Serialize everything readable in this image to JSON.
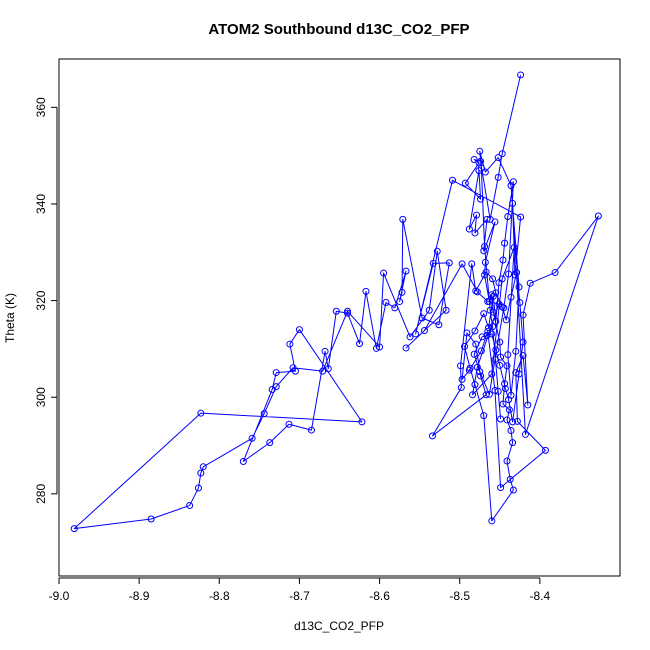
{
  "chart_data": {
    "type": "line",
    "title": "ATOM2 Southbound d13C_CO2_PFP",
    "xlabel": "d13C_CO2_PFP",
    "ylabel": "Theta (K)",
    "xlim": [
      -9.0,
      -8.3
    ],
    "ylim": [
      263,
      370
    ],
    "xticks": [
      -9.0,
      -8.9,
      -8.8,
      -8.7,
      -8.6,
      -8.5,
      -8.4
    ],
    "yticks": [
      280,
      300,
      320,
      340,
      360
    ],
    "xtick_labels": [
      "-9.0",
      "-8.9",
      "-8.8",
      "-8.7",
      "-8.6",
      "-8.5",
      "-8.4"
    ],
    "ytick_labels": [
      "280",
      "300",
      "320",
      "340",
      "360"
    ],
    "grid": false,
    "markers": "open-circle",
    "series": [
      {
        "color": "#0000ff",
        "points": [
          [
            -8.424,
            366.7
          ],
          [
            -8.447,
            350.4
          ],
          [
            -8.452,
            345.5
          ],
          [
            -8.462,
            336.8
          ],
          [
            -8.474,
            348.8
          ],
          [
            -8.482,
            349.2
          ],
          [
            -8.476,
            348.5
          ],
          [
            -8.493,
            344.3
          ],
          [
            -8.474,
            341.0
          ],
          [
            -8.476,
            346.9
          ],
          [
            -8.488,
            334.8
          ],
          [
            -8.479,
            337.7
          ],
          [
            -8.481,
            334.0
          ],
          [
            -8.466,
            336.8
          ],
          [
            -8.47,
            330.3
          ],
          [
            -8.456,
            336.3
          ],
          [
            -8.468,
            327.9
          ],
          [
            -8.469,
            325.3
          ],
          [
            -8.463,
            319.8
          ],
          [
            -8.46,
            321.2
          ],
          [
            -8.458,
            317.6
          ],
          [
            -8.45,
            311.4
          ],
          [
            -8.449,
            308.3
          ],
          [
            -8.441,
            306.5
          ],
          [
            -8.444,
            302.8
          ],
          [
            -8.446,
            298.6
          ],
          [
            -8.438,
            297.4
          ],
          [
            -8.441,
            295.3
          ],
          [
            -8.436,
            293.1
          ],
          [
            -8.434,
            290.6
          ],
          [
            -8.441,
            286.8
          ],
          [
            -8.437,
            283.0
          ],
          [
            -8.433,
            280.8
          ],
          [
            -8.46,
            274.4
          ],
          [
            -8.47,
            296.2
          ],
          [
            -8.481,
            302.6
          ],
          [
            -8.487,
            306.0
          ],
          [
            -8.494,
            310.5
          ],
          [
            -8.481,
            313.7
          ],
          [
            -8.47,
            317.3
          ],
          [
            -8.464,
            314.4
          ],
          [
            -8.458,
            320.9
          ],
          [
            -8.455,
            315.7
          ],
          [
            -8.451,
            323.7
          ],
          [
            -8.446,
            328.4
          ],
          [
            -8.444,
            331.9
          ],
          [
            -8.44,
            337.4
          ],
          [
            -8.433,
            344.6
          ],
          [
            -8.439,
            325.5
          ],
          [
            -8.445,
            318.5
          ],
          [
            -8.456,
            307.8
          ],
          [
            -8.463,
            300.6
          ],
          [
            -8.475,
            305.3
          ],
          [
            -8.482,
            308.9
          ],
          [
            -8.472,
            312.5
          ],
          [
            -8.466,
            312.8
          ],
          [
            -8.46,
            313.1
          ],
          [
            -8.455,
            309.8
          ],
          [
            -8.45,
            306.6
          ],
          [
            -8.443,
            301.8
          ],
          [
            -8.439,
            299.5
          ],
          [
            -8.434,
            294.9
          ],
          [
            -8.426,
            304.8
          ],
          [
            -8.421,
            311.4
          ],
          [
            -8.425,
            319.6
          ],
          [
            -8.429,
            325.8
          ],
          [
            -8.436,
            320.7
          ],
          [
            -8.442,
            316.0
          ],
          [
            -8.447,
            318.7
          ],
          [
            -8.455,
            321.6
          ],
          [
            -8.459,
            324.5
          ],
          [
            -8.467,
            325.9
          ],
          [
            -8.48,
            322.0
          ],
          [
            -8.485,
            327.6
          ],
          [
            -8.499,
            306.5
          ],
          [
            -8.498,
            302.0
          ],
          [
            -8.534,
            292.0
          ],
          [
            -8.467,
            300.5
          ],
          [
            -8.474,
            304.4
          ],
          [
            -8.48,
            311.0
          ],
          [
            -8.491,
            313.3
          ],
          [
            -8.497,
            303.7
          ],
          [
            -8.488,
            305.6
          ],
          [
            -8.473,
            309.6
          ],
          [
            -8.465,
            313.6
          ],
          [
            -8.456,
            301.4
          ],
          [
            -8.449,
            281.3
          ],
          [
            -8.393,
            289.0
          ],
          [
            -8.428,
            295.0
          ],
          [
            -8.43,
            305.1
          ],
          [
            -8.421,
            308.6
          ],
          [
            -8.415,
            298.4
          ],
          [
            -8.421,
            317.0
          ],
          [
            -8.412,
            323.6
          ],
          [
            -8.381,
            325.8
          ],
          [
            -8.327,
            337.5
          ],
          [
            -8.418,
            292.3
          ],
          [
            -8.434,
            340.1
          ],
          [
            -8.431,
            325.3
          ],
          [
            -8.424,
            337.3
          ],
          [
            -8.509,
            344.9
          ],
          [
            -8.555,
            313.1
          ],
          [
            -8.533,
            327.7
          ],
          [
            -8.513,
            327.8
          ],
          [
            -8.526,
            315.0
          ],
          [
            -8.547,
            316.4
          ],
          [
            -8.571,
            336.8
          ],
          [
            -8.572,
            321.7
          ],
          [
            -8.575,
            319.8
          ],
          [
            -8.567,
            326.1
          ],
          [
            -8.581,
            318.5
          ],
          [
            -8.592,
            319.6
          ],
          [
            -8.604,
            310.1
          ],
          [
            -8.617,
            321.9
          ],
          [
            -8.625,
            311.1
          ],
          [
            -8.64,
            317.4
          ],
          [
            -8.654,
            317.8
          ],
          [
            -8.664,
            305.9
          ],
          [
            -8.668,
            309.5
          ],
          [
            -8.685,
            293.2
          ],
          [
            -8.713,
            294.4
          ],
          [
            -8.737,
            290.6
          ],
          [
            -8.77,
            286.7
          ],
          [
            -8.734,
            301.6
          ],
          [
            -8.729,
            305.1
          ],
          [
            -8.705,
            305.4
          ],
          [
            -8.712,
            311.0
          ],
          [
            -8.7,
            314.0
          ],
          [
            -8.622,
            294.9
          ],
          [
            -8.823,
            296.7
          ],
          [
            -8.981,
            272.8
          ],
          [
            -8.885,
            274.8
          ],
          [
            -8.837,
            277.6
          ],
          [
            -8.826,
            281.2
          ],
          [
            -8.823,
            284.3
          ],
          [
            -8.82,
            285.6
          ],
          [
            -8.759,
            291.5
          ],
          [
            -8.744,
            296.6
          ],
          [
            -8.729,
            302.2
          ],
          [
            -8.708,
            306.1
          ],
          [
            -8.671,
            305.4
          ],
          [
            -8.64,
            317.8
          ],
          [
            -8.6,
            310.4
          ],
          [
            -8.595,
            325.7
          ],
          [
            -8.562,
            312.5
          ],
          [
            -8.538,
            318.0
          ],
          [
            -8.528,
            330.2
          ],
          [
            -8.517,
            318.0
          ],
          [
            -8.567,
            310.2
          ],
          [
            -8.544,
            313.8
          ],
          [
            -8.497,
            327.6
          ],
          [
            -8.478,
            321.8
          ],
          [
            -8.465,
            319.8
          ],
          [
            -8.451,
            319.3
          ],
          [
            -8.478,
            306.2
          ],
          [
            -8.484,
            300.5
          ],
          [
            -8.46,
            304.8
          ],
          [
            -8.447,
            324.5
          ],
          [
            -8.432,
            331.0
          ],
          [
            -8.44,
            308.8
          ],
          [
            -8.436,
            300.4
          ],
          [
            -8.43,
            309.5
          ],
          [
            -8.426,
            322.8
          ],
          [
            -8.436,
            343.8
          ],
          [
            -8.452,
            349.6
          ],
          [
            -8.468,
            346.6
          ],
          [
            -8.475,
            350.9
          ],
          [
            -8.473,
            347.4
          ],
          [
            -8.469,
            331.2
          ],
          [
            -8.462,
            318.0
          ],
          [
            -8.459,
            314.6
          ],
          [
            -8.452,
            301.2
          ],
          [
            -8.449,
            295.5
          ]
        ]
      }
    ]
  }
}
